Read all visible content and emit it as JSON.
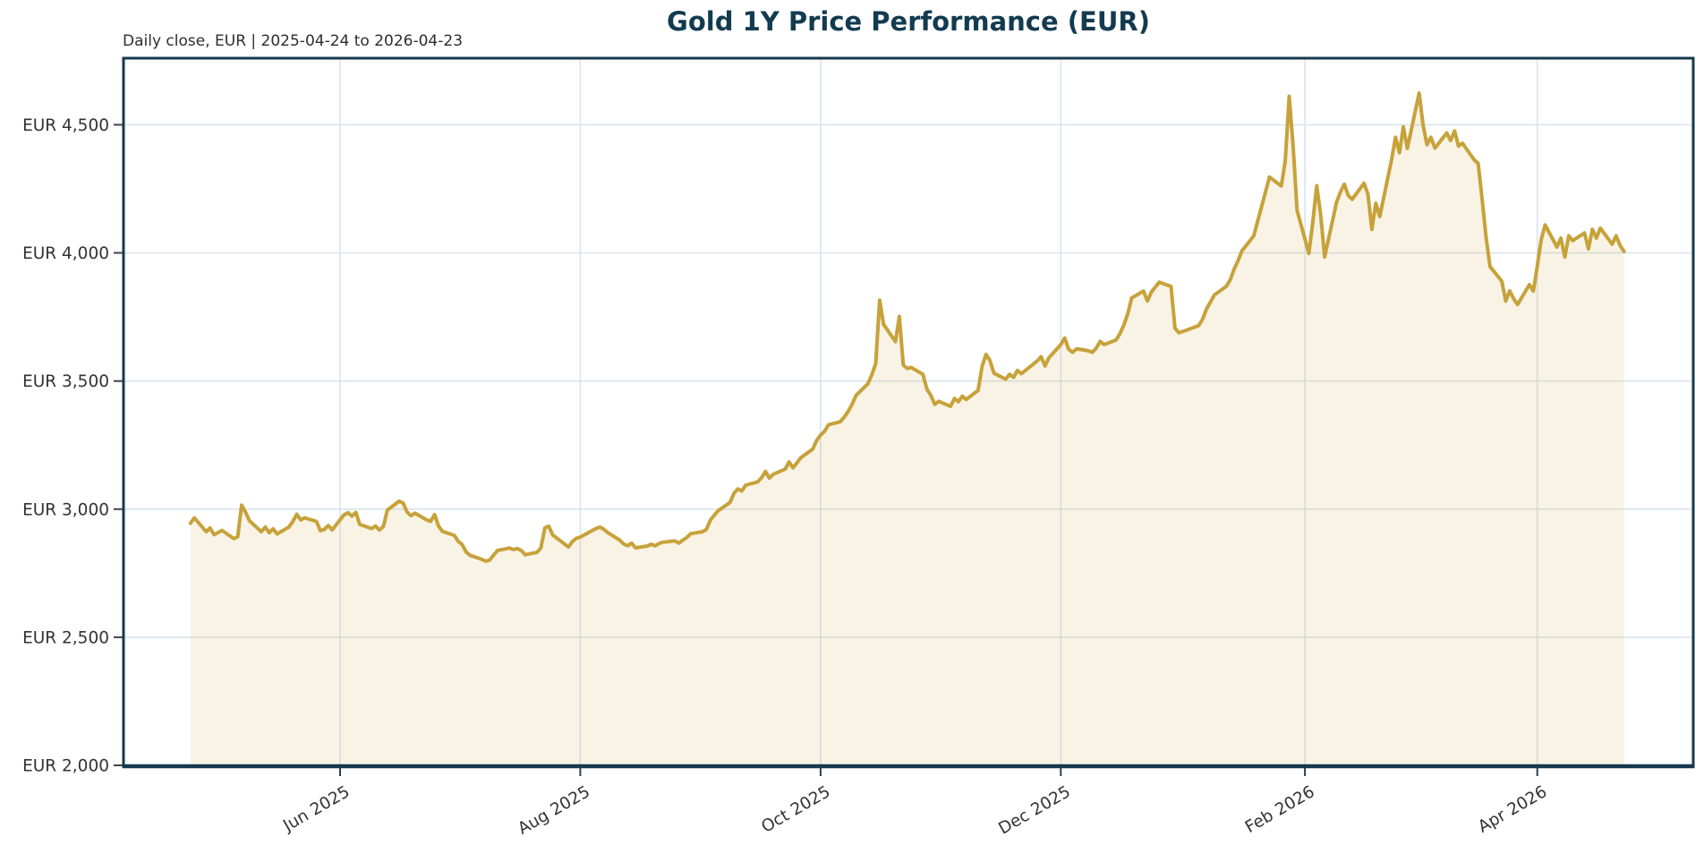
{
  "title": "Gold 1Y Price Performance (EUR)",
  "subtitle": "Daily close, EUR | 2025-04-24 to 2026-04-23",
  "colors": {
    "line": "#C7A23A",
    "fill": "rgba(198,160,55,0.13)",
    "grid": "#D9E4ED",
    "spine": "#16384E",
    "title": "#133b50",
    "tick_label": "#333333"
  },
  "chart_data": {
    "type": "area",
    "title": "Gold 1Y Price Performance (EUR)",
    "subtitle": "Daily close, EUR | 2025-04-24 to 2026-04-23",
    "xlabel": "",
    "ylabel": "",
    "currency": "EUR",
    "x_start": "2025-04-24",
    "x_end": "2026-04-23",
    "ylim": [
      2000,
      4760
    ],
    "grid": true,
    "legend": false,
    "y_ticks": [
      {
        "value": 2000,
        "label": "EUR 2,000"
      },
      {
        "value": 2500,
        "label": "EUR 2,500"
      },
      {
        "value": 3000,
        "label": "EUR 3,000"
      },
      {
        "value": 3500,
        "label": "EUR 3,500"
      },
      {
        "value": 4000,
        "label": "EUR 4,000"
      },
      {
        "value": 4500,
        "label": "EUR 4,500"
      }
    ],
    "x_ticks": [
      {
        "date": "2025-06-01",
        "label": "Jun 2025"
      },
      {
        "date": "2025-08-01",
        "label": "Aug 2025"
      },
      {
        "date": "2025-10-01",
        "label": "Oct 2025"
      },
      {
        "date": "2025-12-01",
        "label": "Dec 2025"
      },
      {
        "date": "2026-02-01",
        "label": "Feb 2026"
      },
      {
        "date": "2026-04-01",
        "label": "Apr 2026"
      }
    ],
    "series_name": "Gold daily close (EUR)",
    "points": [
      [
        "2025-04-24",
        2945
      ],
      [
        "2025-04-25",
        2966
      ],
      [
        "2025-04-28",
        2912
      ],
      [
        "2025-04-29",
        2926
      ],
      [
        "2025-04-30",
        2900
      ],
      [
        "2025-05-02",
        2917
      ],
      [
        "2025-05-05",
        2885
      ],
      [
        "2025-05-06",
        2892
      ],
      [
        "2025-05-07",
        3016
      ],
      [
        "2025-05-08",
        2988
      ],
      [
        "2025-05-09",
        2954
      ],
      [
        "2025-05-12",
        2912
      ],
      [
        "2025-05-13",
        2930
      ],
      [
        "2025-05-14",
        2908
      ],
      [
        "2025-05-15",
        2923
      ],
      [
        "2025-05-16",
        2903
      ],
      [
        "2025-05-19",
        2930
      ],
      [
        "2025-05-20",
        2952
      ],
      [
        "2025-05-21",
        2980
      ],
      [
        "2025-05-22",
        2958
      ],
      [
        "2025-05-23",
        2966
      ],
      [
        "2025-05-26",
        2952
      ],
      [
        "2025-05-27",
        2916
      ],
      [
        "2025-05-28",
        2921
      ],
      [
        "2025-05-29",
        2936
      ],
      [
        "2025-05-30",
        2919
      ],
      [
        "2025-06-02",
        2978
      ],
      [
        "2025-06-03",
        2986
      ],
      [
        "2025-06-04",
        2973
      ],
      [
        "2025-06-05",
        2987
      ],
      [
        "2025-06-06",
        2940
      ],
      [
        "2025-06-09",
        2924
      ],
      [
        "2025-06-10",
        2934
      ],
      [
        "2025-06-11",
        2918
      ],
      [
        "2025-06-12",
        2932
      ],
      [
        "2025-06-13",
        2996
      ],
      [
        "2025-06-16",
        3031
      ],
      [
        "2025-06-17",
        3024
      ],
      [
        "2025-06-18",
        2989
      ],
      [
        "2025-06-19",
        2974
      ],
      [
        "2025-06-20",
        2984
      ],
      [
        "2025-06-23",
        2958
      ],
      [
        "2025-06-24",
        2952
      ],
      [
        "2025-06-25",
        2979
      ],
      [
        "2025-06-26",
        2934
      ],
      [
        "2025-06-27",
        2913
      ],
      [
        "2025-06-30",
        2898
      ],
      [
        "2025-07-01",
        2874
      ],
      [
        "2025-07-02",
        2862
      ],
      [
        "2025-07-03",
        2833
      ],
      [
        "2025-07-04",
        2820
      ],
      [
        "2025-07-07",
        2804
      ],
      [
        "2025-07-08",
        2797
      ],
      [
        "2025-07-09",
        2801
      ],
      [
        "2025-07-10",
        2821
      ],
      [
        "2025-07-11",
        2839
      ],
      [
        "2025-07-14",
        2848
      ],
      [
        "2025-07-15",
        2842
      ],
      [
        "2025-07-16",
        2846
      ],
      [
        "2025-07-17",
        2839
      ],
      [
        "2025-07-18",
        2822
      ],
      [
        "2025-07-21",
        2831
      ],
      [
        "2025-07-22",
        2849
      ],
      [
        "2025-07-23",
        2927
      ],
      [
        "2025-07-24",
        2933
      ],
      [
        "2025-07-25",
        2899
      ],
      [
        "2025-07-28",
        2864
      ],
      [
        "2025-07-29",
        2852
      ],
      [
        "2025-07-30",
        2874
      ],
      [
        "2025-07-31",
        2886
      ],
      [
        "2025-08-01",
        2891
      ],
      [
        "2025-08-04",
        2916
      ],
      [
        "2025-08-05",
        2924
      ],
      [
        "2025-08-06",
        2930
      ],
      [
        "2025-08-07",
        2921
      ],
      [
        "2025-08-08",
        2908
      ],
      [
        "2025-08-11",
        2879
      ],
      [
        "2025-08-12",
        2864
      ],
      [
        "2025-08-13",
        2857
      ],
      [
        "2025-08-14",
        2867
      ],
      [
        "2025-08-15",
        2849
      ],
      [
        "2025-08-18",
        2856
      ],
      [
        "2025-08-19",
        2863
      ],
      [
        "2025-08-20",
        2857
      ],
      [
        "2025-08-21",
        2866
      ],
      [
        "2025-08-22",
        2871
      ],
      [
        "2025-08-25",
        2876
      ],
      [
        "2025-08-26",
        2867
      ],
      [
        "2025-08-27",
        2879
      ],
      [
        "2025-08-28",
        2889
      ],
      [
        "2025-08-29",
        2904
      ],
      [
        "2025-09-01",
        2912
      ],
      [
        "2025-09-02",
        2921
      ],
      [
        "2025-09-03",
        2957
      ],
      [
        "2025-09-04",
        2976
      ],
      [
        "2025-09-05",
        2994
      ],
      [
        "2025-09-08",
        3026
      ],
      [
        "2025-09-09",
        3062
      ],
      [
        "2025-09-10",
        3079
      ],
      [
        "2025-09-11",
        3071
      ],
      [
        "2025-09-12",
        3094
      ],
      [
        "2025-09-15",
        3106
      ],
      [
        "2025-09-16",
        3122
      ],
      [
        "2025-09-17",
        3147
      ],
      [
        "2025-09-18",
        3121
      ],
      [
        "2025-09-19",
        3136
      ],
      [
        "2025-09-22",
        3156
      ],
      [
        "2025-09-23",
        3184
      ],
      [
        "2025-09-24",
        3161
      ],
      [
        "2025-09-25",
        3181
      ],
      [
        "2025-09-26",
        3201
      ],
      [
        "2025-09-29",
        3234
      ],
      [
        "2025-09-30",
        3268
      ],
      [
        "2025-10-01",
        3289
      ],
      [
        "2025-10-02",
        3304
      ],
      [
        "2025-10-03",
        3329
      ],
      [
        "2025-10-06",
        3341
      ],
      [
        "2025-10-07",
        3359
      ],
      [
        "2025-10-08",
        3381
      ],
      [
        "2025-10-09",
        3409
      ],
      [
        "2025-10-10",
        3444
      ],
      [
        "2025-10-13",
        3489
      ],
      [
        "2025-10-14",
        3524
      ],
      [
        "2025-10-15",
        3568
      ],
      [
        "2025-10-16",
        3816
      ],
      [
        "2025-10-17",
        3721
      ],
      [
        "2025-10-20",
        3654
      ],
      [
        "2025-10-21",
        3752
      ],
      [
        "2025-10-22",
        3562
      ],
      [
        "2025-10-23",
        3549
      ],
      [
        "2025-10-24",
        3553
      ],
      [
        "2025-10-27",
        3526
      ],
      [
        "2025-10-28",
        3468
      ],
      [
        "2025-10-29",
        3444
      ],
      [
        "2025-10-30",
        3409
      ],
      [
        "2025-10-31",
        3421
      ],
      [
        "2025-11-03",
        3401
      ],
      [
        "2025-11-04",
        3432
      ],
      [
        "2025-11-05",
        3419
      ],
      [
        "2025-11-06",
        3441
      ],
      [
        "2025-11-07",
        3428
      ],
      [
        "2025-11-10",
        3464
      ],
      [
        "2025-11-11",
        3556
      ],
      [
        "2025-11-12",
        3604
      ],
      [
        "2025-11-13",
        3581
      ],
      [
        "2025-11-14",
        3531
      ],
      [
        "2025-11-17",
        3507
      ],
      [
        "2025-11-18",
        3526
      ],
      [
        "2025-11-19",
        3514
      ],
      [
        "2025-11-20",
        3541
      ],
      [
        "2025-11-21",
        3529
      ],
      [
        "2025-11-24",
        3566
      ],
      [
        "2025-11-25",
        3578
      ],
      [
        "2025-11-26",
        3595
      ],
      [
        "2025-11-27",
        3559
      ],
      [
        "2025-11-28",
        3591
      ],
      [
        "2025-12-01",
        3642
      ],
      [
        "2025-12-02",
        3668
      ],
      [
        "2025-12-03",
        3624
      ],
      [
        "2025-12-04",
        3612
      ],
      [
        "2025-12-05",
        3626
      ],
      [
        "2025-12-08",
        3618
      ],
      [
        "2025-12-09",
        3612
      ],
      [
        "2025-12-10",
        3628
      ],
      [
        "2025-12-11",
        3655
      ],
      [
        "2025-12-12",
        3642
      ],
      [
        "2025-12-15",
        3660
      ],
      [
        "2025-12-16",
        3684
      ],
      [
        "2025-12-17",
        3718
      ],
      [
        "2025-12-18",
        3762
      ],
      [
        "2025-12-19",
        3824
      ],
      [
        "2025-12-22",
        3851
      ],
      [
        "2025-12-23",
        3812
      ],
      [
        "2025-12-24",
        3847
      ],
      [
        "2025-12-26",
        3886
      ],
      [
        "2025-12-29",
        3869
      ],
      [
        "2025-12-30",
        3706
      ],
      [
        "2025-12-31",
        3688
      ],
      [
        "2026-01-02",
        3699
      ],
      [
        "2026-01-05",
        3716
      ],
      [
        "2026-01-06",
        3741
      ],
      [
        "2026-01-07",
        3781
      ],
      [
        "2026-01-08",
        3808
      ],
      [
        "2026-01-09",
        3836
      ],
      [
        "2026-01-12",
        3869
      ],
      [
        "2026-01-13",
        3894
      ],
      [
        "2026-01-14",
        3936
      ],
      [
        "2026-01-15",
        3969
      ],
      [
        "2026-01-16",
        4008
      ],
      [
        "2026-01-19",
        4066
      ],
      [
        "2026-01-20",
        4124
      ],
      [
        "2026-01-21",
        4181
      ],
      [
        "2026-01-22",
        4239
      ],
      [
        "2026-01-23",
        4296
      ],
      [
        "2026-01-26",
        4261
      ],
      [
        "2026-01-27",
        4359
      ],
      [
        "2026-01-28",
        4611
      ],
      [
        "2026-01-29",
        4417
      ],
      [
        "2026-01-30",
        4166
      ],
      [
        "2026-02-02",
        3998
      ],
      [
        "2026-02-03",
        4121
      ],
      [
        "2026-02-04",
        4262
      ],
      [
        "2026-02-05",
        4149
      ],
      [
        "2026-02-06",
        3984
      ],
      [
        "2026-02-09",
        4196
      ],
      [
        "2026-02-10",
        4238
      ],
      [
        "2026-02-11",
        4268
      ],
      [
        "2026-02-12",
        4224
      ],
      [
        "2026-02-13",
        4209
      ],
      [
        "2026-02-16",
        4272
      ],
      [
        "2026-02-17",
        4229
      ],
      [
        "2026-02-18",
        4092
      ],
      [
        "2026-02-19",
        4194
      ],
      [
        "2026-02-20",
        4142
      ],
      [
        "2026-02-23",
        4363
      ],
      [
        "2026-02-24",
        4451
      ],
      [
        "2026-02-25",
        4391
      ],
      [
        "2026-02-26",
        4492
      ],
      [
        "2026-02-27",
        4408
      ],
      [
        "2026-03-02",
        4624
      ],
      [
        "2026-03-03",
        4499
      ],
      [
        "2026-03-04",
        4422
      ],
      [
        "2026-03-05",
        4451
      ],
      [
        "2026-03-06",
        4409
      ],
      [
        "2026-03-09",
        4468
      ],
      [
        "2026-03-10",
        4439
      ],
      [
        "2026-03-11",
        4476
      ],
      [
        "2026-03-12",
        4417
      ],
      [
        "2026-03-13",
        4428
      ],
      [
        "2026-03-16",
        4363
      ],
      [
        "2026-03-17",
        4349
      ],
      [
        "2026-03-18",
        4209
      ],
      [
        "2026-03-19",
        4061
      ],
      [
        "2026-03-20",
        3947
      ],
      [
        "2026-03-23",
        3889
      ],
      [
        "2026-03-24",
        3812
      ],
      [
        "2026-03-25",
        3852
      ],
      [
        "2026-03-26",
        3821
      ],
      [
        "2026-03-27",
        3799
      ],
      [
        "2026-03-30",
        3876
      ],
      [
        "2026-03-31",
        3851
      ],
      [
        "2026-04-01",
        3948
      ],
      [
        "2026-04-02",
        4052
      ],
      [
        "2026-04-03",
        4109
      ],
      [
        "2026-04-06",
        4023
      ],
      [
        "2026-04-07",
        4058
      ],
      [
        "2026-04-08",
        3984
      ],
      [
        "2026-04-09",
        4067
      ],
      [
        "2026-04-10",
        4048
      ],
      [
        "2026-04-13",
        4078
      ],
      [
        "2026-04-14",
        4016
      ],
      [
        "2026-04-15",
        4092
      ],
      [
        "2026-04-16",
        4058
      ],
      [
        "2026-04-17",
        4097
      ],
      [
        "2026-04-20",
        4034
      ],
      [
        "2026-04-21",
        4067
      ],
      [
        "2026-04-22",
        4029
      ],
      [
        "2026-04-23",
        4006
      ]
    ]
  }
}
